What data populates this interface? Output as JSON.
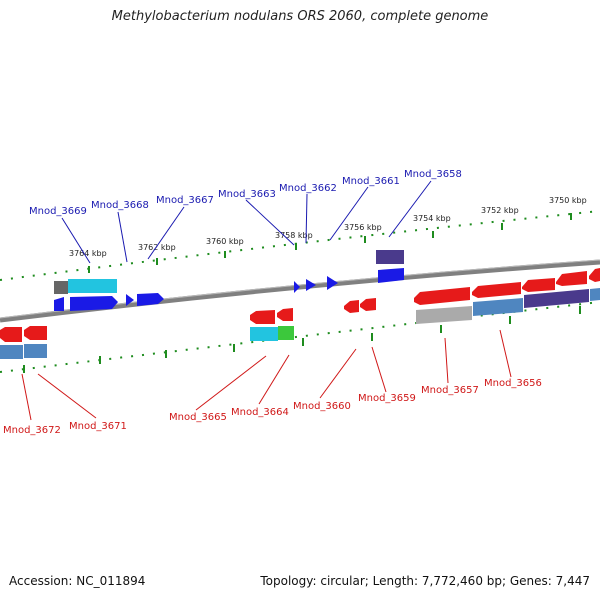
{
  "title": "Methylobacterium nodulans ORS 2060, complete genome",
  "footer": {
    "accession": "Accession: NC_011894",
    "topology": "Topology: circular; Length: 7,772,460 bp; Genes: 7,447"
  },
  "scale_labels": [
    "3764 kbp",
    "3762 kbp",
    "3760 kbp",
    "3758 kbp",
    "3756 kbp",
    "3754 kbp",
    "3752 kbp",
    "3750 kbp"
  ],
  "top_genes": [
    "Mnod_3669",
    "Mnod_3668",
    "Mnod_3667",
    "Mnod_3663",
    "Mnod_3662",
    "Mnod_3661",
    "Mnod_3658"
  ],
  "bottom_genes": [
    "Mnod_3672",
    "Mnod_3671",
    "Mnod_3665",
    "Mnod_3664",
    "Mnod_3660",
    "Mnod_3659",
    "Mnod_3657",
    "Mnod_3656"
  ],
  "colors": {
    "forward": "#1a1ae6",
    "reverse": "#e61a1a",
    "backbone": "#808080",
    "tick": "#1e8c1e",
    "top_label": "#1a1ab0",
    "bottom_label": "#d01818",
    "cyan": "#22c4e0",
    "steel": "#4f86c0",
    "purple": "#4a3a8c",
    "green": "#3cc83c",
    "gray": "#9a9a9a"
  }
}
